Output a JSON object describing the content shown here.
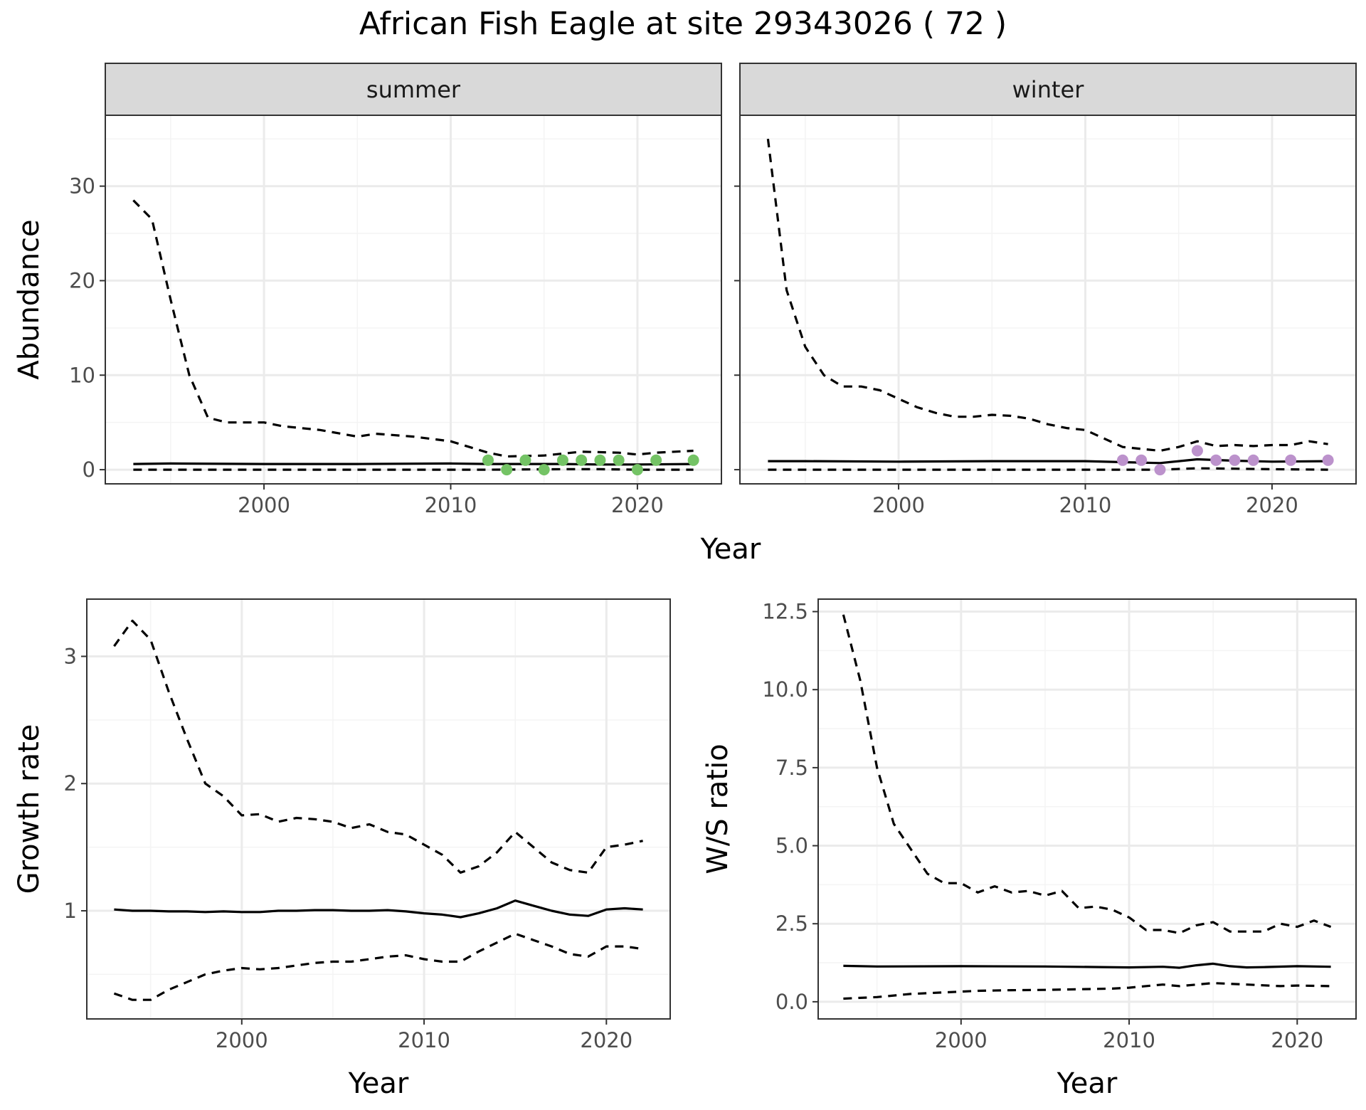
{
  "title": "African Fish Eagle at site 29343026 ( 72 )",
  "colors": {
    "summer_points": "#74c365",
    "winter_points": "#bc92cc",
    "line": "#000000",
    "grid_major": "#ebebeb",
    "grid_minor": "#f4f4f4",
    "strip_fill": "#d9d9d9",
    "panel_border": "#333333"
  },
  "chart_data": [
    {
      "type": "line",
      "facet_wrap": true,
      "xlabel": "Year",
      "ylabel": "Abundance",
      "xlim": [
        1991.5,
        2024.5
      ],
      "ylim": [
        -1.5,
        37.5
      ],
      "x_ticks": [
        2000,
        2010,
        2020
      ],
      "y_ticks": [
        0,
        10,
        20,
        30
      ],
      "grid": true,
      "facets": [
        {
          "label": "summer",
          "point_color": "#74c365",
          "median": {
            "x": [
              1993,
              1995,
              2000,
              2005,
              2010,
              2012,
              2014,
              2016,
              2018,
              2020,
              2023
            ],
            "y": [
              0.6,
              0.65,
              0.6,
              0.6,
              0.65,
              0.6,
              0.6,
              0.6,
              0.55,
              0.55,
              0.6
            ]
          },
          "upper": {
            "x": [
              1993,
              1994,
              1995,
              1996,
              1997,
              1998,
              2000,
              2001,
              2003,
              2005,
              2006,
              2008,
              2010,
              2012,
              2013,
              2015,
              2017,
              2019,
              2020,
              2021,
              2023
            ],
            "y": [
              28.5,
              26.5,
              18,
              10,
              5.5,
              5.0,
              5.0,
              4.6,
              4.2,
              3.5,
              3.8,
              3.5,
              3.0,
              1.8,
              1.4,
              1.5,
              1.9,
              1.8,
              1.6,
              1.8,
              2.0
            ]
          },
          "lower": {
            "x": [
              1993,
              2000,
              2010,
              2012,
              2016,
              2018,
              2020,
              2023
            ],
            "y": [
              0.0,
              0.0,
              0.0,
              0.0,
              0.05,
              0.05,
              0.0,
              0.0
            ]
          },
          "points": {
            "x": [
              2012,
              2013,
              2014,
              2015,
              2016,
              2017,
              2018,
              2019,
              2020,
              2021,
              2023
            ],
            "y": [
              1,
              0,
              1,
              0,
              1,
              1,
              1,
              1,
              0,
              1,
              1
            ]
          }
        },
        {
          "label": "winter",
          "point_color": "#bc92cc",
          "median": {
            "x": [
              1993,
              1995,
              2000,
              2005,
              2010,
              2012,
              2014,
              2016,
              2018,
              2020,
              2023
            ],
            "y": [
              0.9,
              0.9,
              0.85,
              0.9,
              0.9,
              0.8,
              0.7,
              1.1,
              0.95,
              0.85,
              0.9
            ]
          },
          "upper": {
            "x": [
              1993,
              1994,
              1995,
              1996,
              1997,
              1998,
              1999,
              2000,
              2001,
              2002,
              2003,
              2004,
              2005,
              2006,
              2007,
              2008,
              2009,
              2010,
              2011,
              2012,
              2013,
              2014,
              2015,
              2016,
              2017,
              2018,
              2019,
              2020,
              2021,
              2022,
              2023
            ],
            "y": [
              35,
              19,
              13,
              10,
              8.8,
              8.8,
              8.4,
              7.5,
              6.6,
              6.0,
              5.6,
              5.6,
              5.8,
              5.7,
              5.4,
              4.8,
              4.4,
              4.2,
              3.3,
              2.4,
              2.2,
              2.0,
              2.4,
              3.0,
              2.5,
              2.6,
              2.5,
              2.6,
              2.6,
              3.0,
              2.7
            ]
          },
          "lower": {
            "x": [
              1993,
              2000,
              2010,
              2014,
              2016,
              2018,
              2020,
              2023
            ],
            "y": [
              0.0,
              0.0,
              0.0,
              0.0,
              0.15,
              0.1,
              0.05,
              0.0
            ]
          },
          "points": {
            "x": [
              2012,
              2013,
              2014,
              2016,
              2017,
              2018,
              2019,
              2021,
              2023
            ],
            "y": [
              1,
              1,
              0,
              2,
              1,
              1,
              1,
              1,
              1
            ]
          }
        }
      ]
    },
    {
      "type": "line",
      "xlabel": "Year",
      "ylabel": "Growth rate",
      "xlim": [
        1991.5,
        2023.5
      ],
      "ylim": [
        0.15,
        3.45
      ],
      "x_ticks": [
        2000,
        2010,
        2020
      ],
      "y_ticks": [
        1,
        2,
        3
      ],
      "grid": true,
      "series": [
        {
          "style": "solid",
          "x": [
            1993,
            1994,
            1995,
            1996,
            1997,
            1998,
            1999,
            2000,
            2001,
            2002,
            2003,
            2004,
            2005,
            2006,
            2007,
            2008,
            2009,
            2010,
            2011,
            2012,
            2013,
            2014,
            2015,
            2016,
            2017,
            2018,
            2019,
            2020,
            2021,
            2022
          ],
          "y": [
            1.01,
            1.0,
            1.0,
            0.995,
            0.995,
            0.99,
            0.995,
            0.99,
            0.99,
            1.0,
            1.0,
            1.005,
            1.005,
            1.0,
            1.0,
            1.005,
            0.995,
            0.98,
            0.97,
            0.95,
            0.98,
            1.02,
            1.08,
            1.04,
            1.0,
            0.97,
            0.96,
            1.01,
            1.02,
            1.01
          ]
        },
        {
          "style": "dashed",
          "x": [
            1993,
            1994,
            1995,
            1996,
            1997,
            1998,
            1999,
            2000,
            2001,
            2002,
            2003,
            2004,
            2005,
            2006,
            2007,
            2008,
            2009,
            2010,
            2011,
            2012,
            2013,
            2014,
            2015,
            2016,
            2017,
            2018,
            2019,
            2020,
            2021,
            2022
          ],
          "y": [
            3.08,
            3.28,
            3.13,
            2.72,
            2.35,
            2.0,
            1.9,
            1.75,
            1.76,
            1.7,
            1.73,
            1.72,
            1.7,
            1.65,
            1.68,
            1.62,
            1.6,
            1.52,
            1.44,
            1.3,
            1.35,
            1.46,
            1.62,
            1.5,
            1.38,
            1.32,
            1.3,
            1.5,
            1.52,
            1.55
          ]
        },
        {
          "style": "dashed",
          "x": [
            1993,
            1994,
            1995,
            1996,
            1997,
            1998,
            1999,
            2000,
            2001,
            2002,
            2003,
            2004,
            2005,
            2006,
            2007,
            2008,
            2009,
            2010,
            2011,
            2012,
            2013,
            2014,
            2015,
            2016,
            2017,
            2018,
            2019,
            2020,
            2021,
            2022
          ],
          "y": [
            0.35,
            0.3,
            0.3,
            0.38,
            0.44,
            0.5,
            0.53,
            0.55,
            0.54,
            0.55,
            0.57,
            0.59,
            0.6,
            0.6,
            0.62,
            0.64,
            0.65,
            0.62,
            0.6,
            0.6,
            0.68,
            0.75,
            0.82,
            0.77,
            0.72,
            0.66,
            0.64,
            0.72,
            0.72,
            0.7
          ]
        }
      ]
    },
    {
      "type": "line",
      "xlabel": "Year",
      "ylabel": "W/S ratio",
      "xlim": [
        1991.5,
        2023.5
      ],
      "ylim": [
        -0.55,
        12.9
      ],
      "x_ticks": [
        2000,
        2010,
        2020
      ],
      "y_ticks": [
        0.0,
        2.5,
        5.0,
        7.5,
        10.0,
        12.5
      ],
      "y_tick_labels": [
        "0.0",
        "2.5",
        "5.0",
        "7.5",
        "10.0",
        "12.5"
      ],
      "grid": true,
      "series": [
        {
          "style": "solid",
          "x": [
            1993,
            1995,
            2000,
            2005,
            2010,
            2012,
            2013,
            2014,
            2015,
            2016,
            2017,
            2018,
            2020,
            2022
          ],
          "y": [
            1.15,
            1.13,
            1.14,
            1.13,
            1.1,
            1.12,
            1.09,
            1.17,
            1.22,
            1.14,
            1.1,
            1.11,
            1.14,
            1.12
          ]
        },
        {
          "style": "dashed",
          "x": [
            1993,
            1994,
            1995,
            1996,
            1997,
            1998,
            1999,
            2000,
            2001,
            2002,
            2003,
            2004,
            2005,
            2006,
            2007,
            2008,
            2009,
            2010,
            2011,
            2012,
            2013,
            2014,
            2015,
            2016,
            2017,
            2018,
            2019,
            2020,
            2021,
            2022
          ],
          "y": [
            12.4,
            10.3,
            7.5,
            5.7,
            4.9,
            4.1,
            3.8,
            3.8,
            3.5,
            3.7,
            3.5,
            3.55,
            3.4,
            3.55,
            3.0,
            3.05,
            2.95,
            2.7,
            2.3,
            2.3,
            2.2,
            2.45,
            2.55,
            2.25,
            2.25,
            2.25,
            2.5,
            2.4,
            2.6,
            2.4
          ]
        },
        {
          "style": "dashed",
          "x": [
            1993,
            1995,
            1997,
            1999,
            2001,
            2003,
            2005,
            2007,
            2009,
            2010,
            2012,
            2013,
            2015,
            2017,
            2019,
            2020,
            2022
          ],
          "y": [
            0.1,
            0.15,
            0.25,
            0.3,
            0.35,
            0.37,
            0.38,
            0.4,
            0.42,
            0.45,
            0.55,
            0.5,
            0.6,
            0.55,
            0.5,
            0.52,
            0.5
          ]
        }
      ]
    }
  ]
}
